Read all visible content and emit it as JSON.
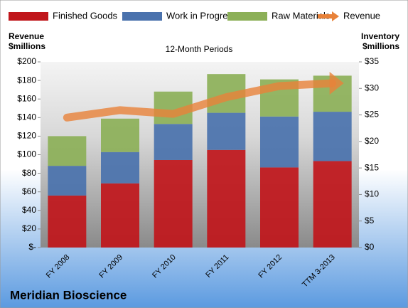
{
  "chart_data": {
    "type": "bar",
    "stacked": true,
    "subtitle": "12-Month Periods",
    "footer": "Meridian Bioscience",
    "ylabel": [
      "Revenue",
      "$millions"
    ],
    "y2label": [
      "Inventory",
      "$millions"
    ],
    "categories": [
      "FY 2008",
      "FY 2009",
      "FY 2010",
      "FY 2011",
      "FY 2012",
      "TTM 3-2013"
    ],
    "series": [
      {
        "name": "Finished Goods",
        "color": "#c0161b",
        "axis": "y2",
        "values": [
          9.8,
          12.1,
          16.5,
          18.4,
          15.1,
          16.3
        ]
      },
      {
        "name": "Work in Progress",
        "color": "#4a72ad",
        "axis": "y2",
        "values": [
          5.6,
          5.9,
          6.8,
          7.0,
          9.6,
          9.3
        ]
      },
      {
        "name": "Raw Materials",
        "color": "#8cb058",
        "axis": "y2",
        "values": [
          5.6,
          6.3,
          6.1,
          7.3,
          7.0,
          6.8
        ]
      },
      {
        "name": "Revenue",
        "color": "#e8823a",
        "axis": "y",
        "type": "line",
        "values": [
          140,
          148,
          144,
          162,
          174,
          177
        ]
      }
    ],
    "ylim": [
      0,
      200
    ],
    "yticks": [
      {
        "value": 0,
        "label": "$-"
      },
      {
        "value": 20,
        "label": "$20"
      },
      {
        "value": 40,
        "label": "$40"
      },
      {
        "value": 60,
        "label": "$60"
      },
      {
        "value": 80,
        "label": "$80"
      },
      {
        "value": 100,
        "label": "$100"
      },
      {
        "value": 120,
        "label": "$120"
      },
      {
        "value": 140,
        "label": "$140"
      },
      {
        "value": 160,
        "label": "$160"
      },
      {
        "value": 180,
        "label": "$180"
      },
      {
        "value": 200,
        "label": "$200"
      }
    ],
    "y2lim": [
      0,
      35
    ],
    "y2ticks": [
      {
        "value": 0,
        "label": "$0"
      },
      {
        "value": 5,
        "label": "$5"
      },
      {
        "value": 10,
        "label": "$10"
      },
      {
        "value": 15,
        "label": "$15"
      },
      {
        "value": 20,
        "label": "$20"
      },
      {
        "value": 25,
        "label": "$25"
      },
      {
        "value": 30,
        "label": "$30"
      },
      {
        "value": 35,
        "label": "$35"
      }
    ]
  }
}
